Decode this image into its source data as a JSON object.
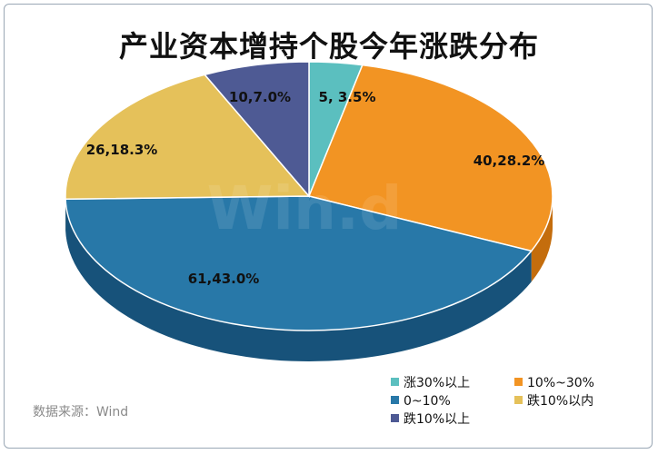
{
  "title": "产业资本增持个股今年涨跌分布",
  "source": "数据来源：Wind",
  "watermark": "Win.d",
  "chart_data": {
    "type": "pie",
    "title": "产业资本增持个股今年涨跌分布",
    "slices": [
      {
        "name": "涨30%以上",
        "value": 5,
        "percent": 3.5,
        "label": "5, 3.5%",
        "color": "#5bbfbf",
        "side": "#3f9a9a"
      },
      {
        "name": "10%~30%",
        "value": 40,
        "percent": 28.2,
        "label": "40,28.2%",
        "color": "#f29423",
        "side": "#c46d0d"
      },
      {
        "name": "0~10%",
        "value": 61,
        "percent": 43.0,
        "label": "61,43.0%",
        "color": "#2878a8",
        "side": "#17527a"
      },
      {
        "name": "跌10%以内",
        "value": 26,
        "percent": 18.3,
        "label": "26,18.3%",
        "color": "#e5c15a",
        "side": "#b8962f"
      },
      {
        "name": "跌10%以上",
        "value": 10,
        "percent": 7.0,
        "label": "10,7.0%",
        "color": "#4e5a94",
        "side": "#333d6c"
      }
    ],
    "legend_position": "bottom-right"
  }
}
